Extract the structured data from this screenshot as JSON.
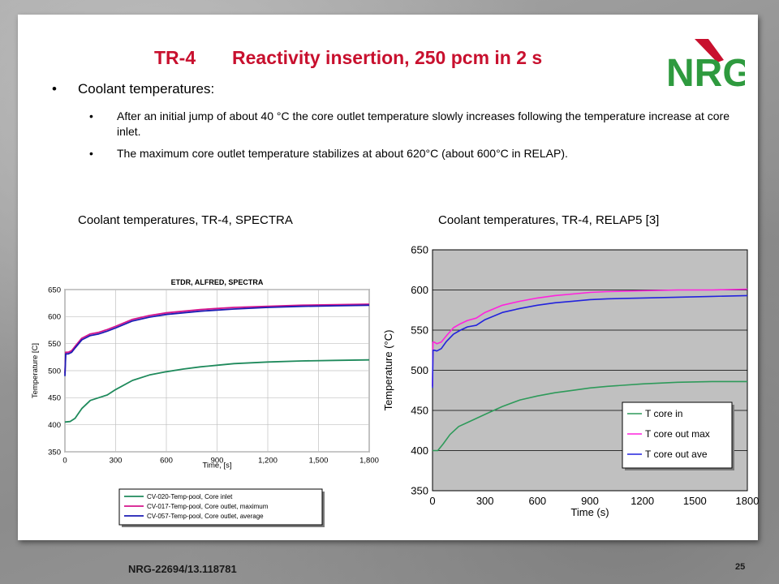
{
  "slide": {
    "title_num": "TR-4",
    "title_text": "Reactivity insertion, 250 pcm in 2 s",
    "logo_text": "NRG",
    "bullet_main": "Coolant temperatures:",
    "sub_bullets": [
      "After an initial jump of about 40 °C the core outlet temperature slowly increases following the temperature increase at core inlet.",
      "The maximum core outlet temperature stabilizes at about 620°C (about 600°C in RELAP)."
    ],
    "caption_left": "Coolant temperatures, TR-4, SPECTRA",
    "caption_right": "Coolant temperatures, TR-4, RELAP5 [3]",
    "footer_id": "NRG-22694/13.118781",
    "page_number": "25"
  },
  "colors": {
    "title": "#c8102e",
    "logo_red": "#c8102e",
    "logo_green": "#2e9a3e"
  },
  "chart_data": [
    {
      "type": "line",
      "title": "ETDR, ALFRED, SPECTRA",
      "xlabel": "Time, [s]",
      "ylabel": "Temperature [C]",
      "xlim": [
        0,
        1800
      ],
      "ylim": [
        350,
        650
      ],
      "x_ticks": [
        "0",
        "300",
        "600",
        "900",
        "1,200",
        "1,500",
        "1,800"
      ],
      "y_ticks": [
        "350",
        "400",
        "450",
        "500",
        "550",
        "600",
        "650"
      ],
      "grid": true,
      "legend_position": "below",
      "series": [
        {
          "name": "CV-020-Temp-pool, Core inlet",
          "color": "#1f8a5c",
          "x": [
            0,
            30,
            60,
            100,
            150,
            200,
            250,
            300,
            400,
            500,
            600,
            700,
            800,
            900,
            1000,
            1200,
            1400,
            1600,
            1800
          ],
          "y": [
            405,
            406,
            412,
            430,
            445,
            450,
            455,
            465,
            482,
            492,
            498,
            503,
            507,
            510,
            513,
            516,
            518,
            519,
            520
          ]
        },
        {
          "name": "CV-017-Temp-pool, Core outlet, maximum",
          "color": "#d4148c",
          "x": [
            0,
            5,
            20,
            40,
            60,
            100,
            150,
            200,
            250,
            300,
            400,
            500,
            600,
            700,
            800,
            900,
            1000,
            1200,
            1400,
            1600,
            1800
          ],
          "y": [
            495,
            534,
            534,
            537,
            545,
            560,
            568,
            571,
            576,
            582,
            595,
            602,
            607,
            610,
            613,
            615,
            617,
            619,
            621,
            622,
            623
          ]
        },
        {
          "name": "CV-057-Temp-pool, Core outlet, average",
          "color": "#1c1cb4",
          "x": [
            0,
            5,
            20,
            40,
            60,
            100,
            150,
            200,
            250,
            300,
            400,
            500,
            600,
            700,
            800,
            900,
            1000,
            1200,
            1400,
            1600,
            1800
          ],
          "y": [
            490,
            531,
            531,
            534,
            542,
            557,
            565,
            568,
            573,
            579,
            592,
            599,
            604,
            607,
            610,
            612,
            614,
            617,
            619,
            620,
            621
          ]
        }
      ]
    },
    {
      "type": "line",
      "title": "",
      "xlabel": "Time (s)",
      "ylabel": "Temperature (°C)",
      "xlim": [
        0,
        1800
      ],
      "ylim": [
        350,
        650
      ],
      "x_ticks": [
        "0",
        "300",
        "600",
        "900",
        "1200",
        "1500",
        "1800"
      ],
      "y_ticks": [
        "350",
        "400",
        "450",
        "500",
        "550",
        "600",
        "650"
      ],
      "grid": true,
      "legend_position": "bottom-right",
      "series": [
        {
          "name": "T core in",
          "color": "#2e9a5a",
          "x": [
            0,
            30,
            60,
            100,
            150,
            200,
            250,
            300,
            350,
            400,
            500,
            600,
            700,
            800,
            900,
            1000,
            1200,
            1400,
            1600,
            1800
          ],
          "y": [
            400,
            400,
            408,
            420,
            430,
            435,
            440,
            445,
            450,
            455,
            463,
            468,
            472,
            475,
            478,
            480,
            483,
            485,
            486,
            486
          ]
        },
        {
          "name": "T core out max",
          "color": "#ff22dd",
          "x": [
            0,
            3,
            10,
            25,
            50,
            80,
            120,
            160,
            200,
            250,
            300,
            400,
            500,
            600,
            700,
            800,
            900,
            1000,
            1200,
            1400,
            1600,
            1800
          ],
          "y": [
            480,
            535,
            535,
            533,
            535,
            543,
            553,
            558,
            562,
            565,
            572,
            581,
            586,
            590,
            593,
            595,
            597,
            598,
            599,
            600,
            600,
            601
          ]
        },
        {
          "name": "T core out ave",
          "color": "#2222dd",
          "x": [
            0,
            3,
            10,
            25,
            50,
            80,
            120,
            160,
            200,
            250,
            300,
            400,
            500,
            600,
            700,
            800,
            900,
            1000,
            1200,
            1400,
            1600,
            1800
          ],
          "y": [
            478,
            525,
            525,
            524,
            527,
            536,
            545,
            550,
            554,
            556,
            563,
            572,
            577,
            581,
            584,
            586,
            588,
            589,
            590,
            591,
            592,
            593
          ]
        }
      ]
    }
  ]
}
